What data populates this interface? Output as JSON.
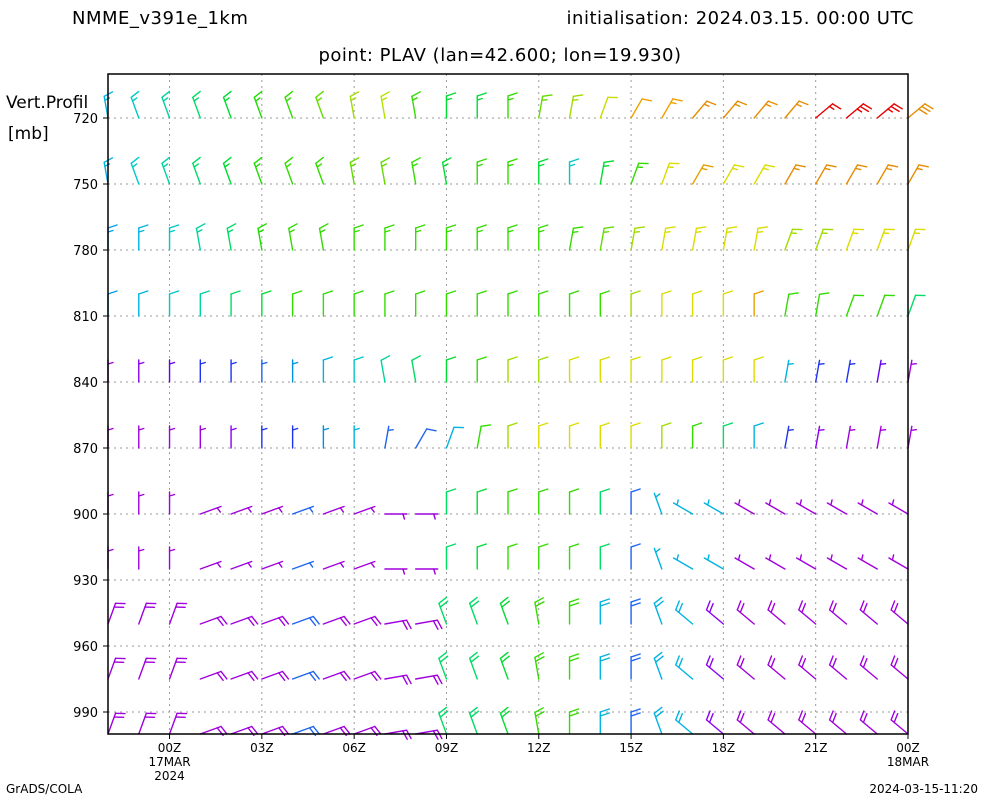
{
  "header": {
    "model": "NMME_v391e_1km",
    "initialisation": "initialisation: 2024.03.15. 00:00 UTC",
    "point": "point: PLAV (lan=42.600; lon=19.930)"
  },
  "y_axis_label": {
    "line1": "Vert.Profil",
    "line2": "[mb]"
  },
  "footer": {
    "left": "GrADS/COLA",
    "right": "2024-03-15-11:20"
  },
  "chart_data": {
    "type": "wind-barb-profile",
    "x_ticks": [
      {
        "hour": 0,
        "label": "00Z",
        "sub1": "17MAR",
        "sub2": "2024"
      },
      {
        "hour": 3,
        "label": "03Z"
      },
      {
        "hour": 6,
        "label": "06Z"
      },
      {
        "hour": 9,
        "label": "09Z"
      },
      {
        "hour": 12,
        "label": "12Z"
      },
      {
        "hour": 15,
        "label": "15Z"
      },
      {
        "hour": 18,
        "label": "18Z"
      },
      {
        "hour": 21,
        "label": "21Z"
      },
      {
        "hour": 24,
        "label": "00Z",
        "sub1": "18MAR"
      }
    ],
    "xlim": [
      -2,
      24
    ],
    "ylim": [
      700,
      1000
    ],
    "y_ticks": [
      720,
      750,
      780,
      810,
      840,
      870,
      900,
      930,
      960,
      990
    ],
    "grid": true,
    "levels_mb": [
      720,
      750,
      780,
      810,
      840,
      870,
      900,
      925,
      950,
      975,
      1000
    ],
    "times_h": [
      -2,
      -1,
      0,
      1,
      2,
      3,
      4,
      5,
      6,
      7,
      8,
      9,
      10,
      11,
      12,
      13,
      14,
      15,
      16,
      17,
      18,
      19,
      20,
      21,
      22,
      23,
      24
    ],
    "speed_knots": {
      "720": [
        15,
        15,
        15,
        15,
        15,
        15,
        15,
        15,
        15,
        15,
        15,
        15,
        15,
        15,
        15,
        15,
        10,
        10,
        15,
        15,
        15,
        15,
        15,
        15,
        25,
        25,
        30
      ],
      "750": [
        15,
        15,
        15,
        15,
        15,
        15,
        15,
        15,
        15,
        15,
        15,
        15,
        15,
        15,
        15,
        15,
        15,
        15,
        15,
        15,
        15,
        15,
        15,
        15,
        15,
        15,
        15
      ],
      "780": [
        15,
        15,
        15,
        15,
        15,
        15,
        15,
        15,
        15,
        15,
        15,
        15,
        15,
        15,
        15,
        15,
        15,
        15,
        15,
        15,
        15,
        15,
        15,
        15,
        15,
        15,
        15
      ],
      "810": [
        10,
        10,
        10,
        10,
        10,
        10,
        10,
        10,
        10,
        10,
        10,
        10,
        10,
        10,
        10,
        10,
        10,
        10,
        10,
        10,
        10,
        10,
        10,
        10,
        10,
        10,
        10
      ],
      "840": [
        5,
        5,
        5,
        5,
        5,
        5,
        5,
        10,
        10,
        10,
        10,
        10,
        10,
        10,
        10,
        10,
        10,
        10,
        10,
        10,
        10,
        10,
        5,
        5,
        5,
        5,
        5
      ],
      "870": [
        5,
        5,
        5,
        5,
        5,
        5,
        5,
        5,
        5,
        5,
        10,
        10,
        10,
        10,
        10,
        10,
        10,
        10,
        10,
        10,
        10,
        10,
        5,
        5,
        5,
        5,
        5
      ],
      "900": [
        5,
        5,
        5,
        5,
        5,
        5,
        5,
        5,
        5,
        5,
        5,
        10,
        10,
        10,
        10,
        10,
        10,
        10,
        5,
        5,
        5,
        5,
        5,
        5,
        5,
        5,
        5
      ],
      "925": [
        5,
        5,
        5,
        5,
        5,
        5,
        5,
        5,
        5,
        5,
        5,
        10,
        10,
        10,
        10,
        10,
        10,
        10,
        5,
        5,
        5,
        5,
        5,
        5,
        5,
        5,
        5
      ],
      "950": [
        20,
        20,
        20,
        20,
        20,
        20,
        20,
        20,
        20,
        20,
        20,
        20,
        20,
        20,
        20,
        20,
        20,
        20,
        20,
        20,
        20,
        20,
        20,
        20,
        20,
        20,
        20
      ],
      "975": [
        20,
        20,
        20,
        20,
        20,
        20,
        20,
        20,
        20,
        20,
        20,
        20,
        20,
        20,
        20,
        20,
        20,
        20,
        20,
        20,
        20,
        20,
        20,
        20,
        20,
        20,
        20
      ],
      "1000": [
        20,
        20,
        20,
        20,
        20,
        20,
        20,
        20,
        20,
        20,
        20,
        20,
        20,
        20,
        20,
        20,
        20,
        20,
        20,
        20,
        20,
        20,
        20,
        20,
        20,
        20,
        20
      ]
    },
    "shaft_angle_deg": {
      "720": [
        100,
        110,
        110,
        110,
        110,
        110,
        110,
        110,
        100,
        100,
        100,
        90,
        90,
        90,
        80,
        80,
        70,
        60,
        60,
        50,
        50,
        50,
        50,
        40,
        40,
        40,
        40
      ],
      "750": [
        100,
        110,
        110,
        110,
        110,
        110,
        110,
        110,
        100,
        100,
        100,
        100,
        90,
        90,
        90,
        90,
        80,
        70,
        70,
        60,
        60,
        60,
        60,
        60,
        60,
        60,
        60
      ],
      "780": [
        90,
        90,
        90,
        100,
        100,
        100,
        100,
        100,
        90,
        90,
        90,
        90,
        90,
        90,
        90,
        80,
        80,
        80,
        80,
        80,
        80,
        80,
        70,
        70,
        70,
        70,
        70
      ],
      "810": [
        90,
        90,
        90,
        90,
        90,
        90,
        90,
        90,
        90,
        90,
        90,
        90,
        90,
        90,
        90,
        90,
        90,
        90,
        90,
        90,
        90,
        90,
        80,
        80,
        70,
        70,
        70
      ],
      "840": [
        90,
        90,
        90,
        90,
        90,
        90,
        90,
        90,
        90,
        100,
        100,
        90,
        90,
        90,
        90,
        90,
        90,
        90,
        90,
        90,
        90,
        90,
        80,
        80,
        80,
        80,
        80
      ],
      "870": [
        90,
        90,
        90,
        90,
        90,
        90,
        90,
        90,
        90,
        80,
        60,
        70,
        80,
        90,
        90,
        90,
        90,
        90,
        90,
        90,
        90,
        90,
        80,
        80,
        80,
        80,
        80
      ],
      "900": [
        90,
        90,
        90,
        20,
        20,
        20,
        20,
        20,
        20,
        0,
        0,
        90,
        90,
        90,
        90,
        90,
        90,
        90,
        110,
        150,
        150,
        150,
        150,
        150,
        150,
        150,
        150
      ],
      "925": [
        90,
        90,
        90,
        20,
        20,
        20,
        20,
        20,
        20,
        0,
        0,
        90,
        90,
        90,
        90,
        90,
        90,
        90,
        110,
        150,
        150,
        150,
        150,
        150,
        150,
        150,
        150
      ],
      "950": [
        70,
        70,
        70,
        20,
        20,
        20,
        20,
        20,
        20,
        10,
        10,
        110,
        110,
        110,
        100,
        90,
        90,
        90,
        110,
        140,
        140,
        140,
        140,
        140,
        140,
        140,
        140
      ],
      "975": [
        70,
        70,
        70,
        20,
        20,
        20,
        20,
        20,
        20,
        10,
        10,
        110,
        110,
        110,
        100,
        90,
        90,
        90,
        110,
        140,
        140,
        140,
        140,
        140,
        140,
        140,
        140
      ],
      "1000": [
        70,
        70,
        70,
        20,
        20,
        20,
        20,
        20,
        20,
        10,
        10,
        110,
        110,
        110,
        100,
        90,
        90,
        90,
        110,
        140,
        140,
        140,
        140,
        140,
        140,
        140,
        140
      ]
    },
    "colors": {
      "720": [
        "#00b4e0",
        "#00c8c8",
        "#00d2a0",
        "#00dc64",
        "#00dc32",
        "#1edc00",
        "#32dc00",
        "#64dc00",
        "#a0dc00",
        "#b4e600",
        "#32dc00",
        "#00dc32",
        "#00dc32",
        "#32dc00",
        "#64dc00",
        "#a0dc00",
        "#c8dc00",
        "#f0a000",
        "#f0a000",
        "#e68c00",
        "#e68c00",
        "#e68c00",
        "#e68c00",
        "#e60000",
        "#e60000",
        "#e60000",
        "#e68c00"
      ],
      "750": [
        "#00b4e0",
        "#00c8c8",
        "#00d2a0",
        "#00dc64",
        "#00dc32",
        "#1edc00",
        "#32dc00",
        "#32dc00",
        "#64dc00",
        "#64dc00",
        "#32dc00",
        "#00dc32",
        "#32dc00",
        "#32dc00",
        "#00dc32",
        "#00c8c8",
        "#00dc32",
        "#32dc00",
        "#dcdc00",
        "#e6a000",
        "#dcdc00",
        "#dcdc00",
        "#e68c00",
        "#e68c00",
        "#e68c00",
        "#e68c00",
        "#e68c00"
      ],
      "780": [
        "#00a0f0",
        "#00b4e0",
        "#00c8c8",
        "#00d2a0",
        "#00dc64",
        "#1edc00",
        "#32dc00",
        "#32dc00",
        "#32dc00",
        "#32dc00",
        "#32dc00",
        "#32dc00",
        "#32dc00",
        "#32dc00",
        "#32dc00",
        "#32dc00",
        "#64dc00",
        "#a0dc00",
        "#dcdc00",
        "#dcdc00",
        "#dcdc00",
        "#dcdc00",
        "#a0dc00",
        "#a0dc00",
        "#dcdc00",
        "#dcdc00",
        "#dcdc00"
      ],
      "810": [
        "#00a0f0",
        "#00b4e0",
        "#00c8c8",
        "#00d2a0",
        "#00dc64",
        "#00dc32",
        "#32dc00",
        "#32dc00",
        "#32dc00",
        "#32dc00",
        "#32dc00",
        "#32dc00",
        "#32dc00",
        "#32dc00",
        "#32dc00",
        "#32dc00",
        "#32dc00",
        "#a0dc00",
        "#dcdc00",
        "#dcdc00",
        "#dcdc00",
        "#e6a000",
        "#32dc00",
        "#32dc00",
        "#32dc00",
        "#32dc00",
        "#00dc64"
      ],
      "840": [
        "#a000dc",
        "#8c00f0",
        "#6400f0",
        "#1e32f0",
        "#1e32f0",
        "#1e64f0",
        "#0090e0",
        "#00b4e0",
        "#00c8c8",
        "#00d2a0",
        "#00dc64",
        "#00dc32",
        "#32dc00",
        "#a0dc00",
        "#a0dc00",
        "#dcdc00",
        "#dcdc00",
        "#dcdc00",
        "#dcdc00",
        "#dcdc00",
        "#dcdc00",
        "#dcdc00",
        "#00b4e0",
        "#1e32f0",
        "#1e32f0",
        "#6400f0",
        "#a000dc"
      ],
      "870": [
        "#a000dc",
        "#a000dc",
        "#a000dc",
        "#a000dc",
        "#8c00f0",
        "#1e32f0",
        "#1e32f0",
        "#0090e0",
        "#00b4e0",
        "#1e64f0",
        "#1e64f0",
        "#00b4e0",
        "#32dc00",
        "#a0dc00",
        "#dcdc00",
        "#dcdc00",
        "#dcdc00",
        "#dcdc00",
        "#a0dc00",
        "#32dc00",
        "#00dc64",
        "#00b4e0",
        "#1e32f0",
        "#8c00f0",
        "#a000dc",
        "#a000dc",
        "#a000dc"
      ],
      "900": [
        "#a000dc",
        "#a000dc",
        "#a000dc",
        "#a000dc",
        "#a000dc",
        "#a000dc",
        "#1e64f0",
        "#a000dc",
        "#a000dc",
        "#a000dc",
        "#a000dc",
        "#00dc64",
        "#00dc32",
        "#32dc00",
        "#32dc00",
        "#32dc00",
        "#00dc64",
        "#1e64f0",
        "#00b4e0",
        "#00b4e0",
        "#00b4e0",
        "#a000dc",
        "#a000dc",
        "#a000dc",
        "#a000dc",
        "#a000dc",
        "#a000dc"
      ],
      "925": [
        "#a000dc",
        "#a000dc",
        "#a000dc",
        "#a000dc",
        "#a000dc",
        "#a000dc",
        "#1e64f0",
        "#a000dc",
        "#a000dc",
        "#a000dc",
        "#a000dc",
        "#00dc64",
        "#00dc32",
        "#32dc00",
        "#32dc00",
        "#32dc00",
        "#00dc64",
        "#1e64f0",
        "#00b4e0",
        "#00b4e0",
        "#00b4e0",
        "#a000dc",
        "#a000dc",
        "#a000dc",
        "#a000dc",
        "#a000dc",
        "#a000dc"
      ],
      "950": [
        "#a000dc",
        "#a000dc",
        "#a000dc",
        "#a000dc",
        "#a000dc",
        "#a000dc",
        "#1e64f0",
        "#a000dc",
        "#a000dc",
        "#a000dc",
        "#a000dc",
        "#00dc64",
        "#00dc64",
        "#00dc32",
        "#32dc00",
        "#32dc00",
        "#00b4e0",
        "#1e64f0",
        "#00b4e0",
        "#00b4e0",
        "#8c00f0",
        "#a000dc",
        "#a000dc",
        "#a000dc",
        "#a000dc",
        "#a000dc",
        "#a000dc"
      ],
      "975": [
        "#a000dc",
        "#a000dc",
        "#a000dc",
        "#a000dc",
        "#a000dc",
        "#a000dc",
        "#1e64f0",
        "#a000dc",
        "#a000dc",
        "#a000dc",
        "#a000dc",
        "#00dc64",
        "#00dc64",
        "#00dc32",
        "#32dc00",
        "#32dc00",
        "#00b4e0",
        "#1e64f0",
        "#00b4e0",
        "#00b4e0",
        "#8c00f0",
        "#a000dc",
        "#a000dc",
        "#a000dc",
        "#a000dc",
        "#a000dc",
        "#a000dc"
      ],
      "1000": [
        "#a000dc",
        "#a000dc",
        "#a000dc",
        "#a000dc",
        "#a000dc",
        "#a000dc",
        "#1e64f0",
        "#a000dc",
        "#a000dc",
        "#a000dc",
        "#a000dc",
        "#00dc64",
        "#00dc64",
        "#00dc32",
        "#32dc00",
        "#32dc00",
        "#00b4e0",
        "#1e64f0",
        "#00b4e0",
        "#00b4e0",
        "#8c00f0",
        "#a000dc",
        "#a000dc",
        "#a000dc",
        "#a000dc",
        "#a000dc",
        "#a000dc"
      ]
    }
  }
}
